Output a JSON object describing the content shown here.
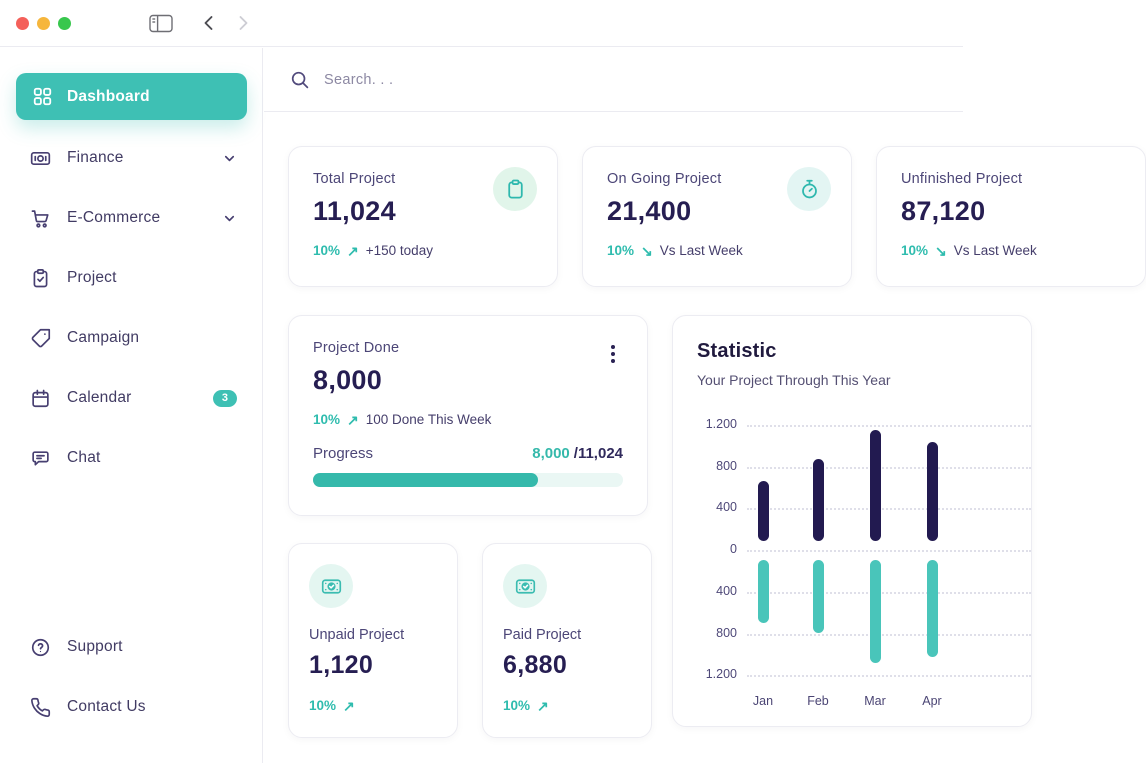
{
  "window": {
    "controls": [
      "close",
      "minimize",
      "zoom"
    ]
  },
  "sidebar": {
    "items": [
      {
        "label": "Dashboard",
        "icon": "grid",
        "active": true
      },
      {
        "label": "Finance",
        "icon": "banknote",
        "expandable": true
      },
      {
        "label": "E-Commerce",
        "icon": "cart",
        "expandable": true
      },
      {
        "label": "Project",
        "icon": "clipboard-check"
      },
      {
        "label": "Campaign",
        "icon": "tag"
      },
      {
        "label": "Calendar",
        "icon": "calendar",
        "badge": "3"
      },
      {
        "label": "Chat",
        "icon": "chat-bubble"
      }
    ],
    "footer_items": [
      {
        "label": "Support",
        "icon": "help-circle"
      },
      {
        "label": "Contact Us",
        "icon": "phone"
      }
    ]
  },
  "search": {
    "placeholder": "Search. . ."
  },
  "icons": {
    "trend_up": "↗",
    "trend_down": "↘"
  },
  "stat_cards": [
    {
      "label": "Total Project",
      "value": "11,024",
      "delta": "10%",
      "trend": "up",
      "context": "+150 today",
      "icon": "clipboard"
    },
    {
      "label": "On Going Project",
      "value": "21,400",
      "delta": "10%",
      "trend": "down",
      "context": "Vs Last Week",
      "icon": "stopwatch"
    },
    {
      "label": "Unfinished Project",
      "value": "87,120",
      "delta": "10%",
      "trend": "down",
      "context": "Vs Last Week",
      "icon": ""
    }
  ],
  "project_done": {
    "label": "Project Done",
    "value": "8,000",
    "delta": "10%",
    "trend": "up",
    "context": "100 Done This Week",
    "progress_label": "Progress",
    "progress_current": "8,000",
    "progress_total": "/11,024",
    "progress_pct": 72.6
  },
  "mini_cards": [
    {
      "label": "Unpaid Project",
      "value": "1,120",
      "delta": "10%",
      "trend": "up",
      "icon": "money-check"
    },
    {
      "label": "Paid Project",
      "value": "6,880",
      "delta": "10%",
      "trend": "up",
      "icon": "money-check"
    }
  ],
  "chart_data": {
    "type": "bar",
    "title": "Statistic",
    "subtitle": "Your Project Through This Year",
    "orientation": "diverging-vertical",
    "categories": [
      "Jan",
      "Feb",
      "Mar",
      "Apr"
    ],
    "series": [
      {
        "name": "projects-above-axis",
        "color": "#221a50",
        "values": [
          660,
          870,
          1150,
          1040
        ]
      },
      {
        "name": "projects-below-axis",
        "color": "#49c5ba",
        "values": [
          700,
          800,
          1080,
          1030
        ]
      }
    ],
    "y_ticks": [
      1200,
      800,
      400,
      0,
      -400,
      -800,
      -1200
    ],
    "y_tick_labels": [
      "1.200",
      "800",
      "400",
      "0",
      "400",
      "800",
      "1.200"
    ],
    "ylim": [
      -1200,
      1200
    ],
    "grid": "dotted-horizontal",
    "legend": "none"
  },
  "colors": {
    "accent_teal": "#3ec0b4",
    "bar_navy": "#221a50",
    "bar_teal": "#49c5ba",
    "value_text": "#261e52",
    "label_text": "#4c4677",
    "delta_teal": "#2fbcae",
    "progress_fill": "#35b9ab",
    "progress_track": "#eaf7f4",
    "icon_circle_mint": "#e1f5ea",
    "icon_circle_aqua": "#e3f5f3",
    "traffic_red": "#f4605a",
    "traffic_yellow": "#f6b63c",
    "traffic_green": "#38c74d"
  }
}
